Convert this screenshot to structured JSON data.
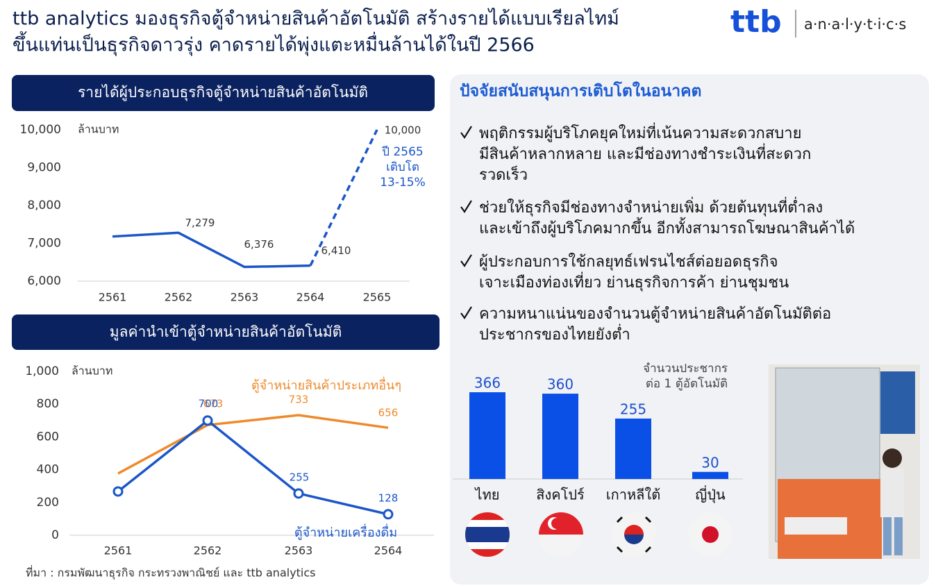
{
  "header": {
    "title_lines": [
      "ttb analytics มองธุรกิจตู้จำหน่ายสินค้าอัตโนมัติ สร้างรายได้แบบเรียลไทม์",
      "ขึ้นแท่นเป็นธุรกิจดาวรุ่ง  คาดรายได้พุ่งแตะหมื่นล้านได้ในปี 2566"
    ],
    "logo": {
      "brand": "ttb",
      "name": "a·n·a·l·y·t·i·c·s"
    }
  },
  "chart_data": [
    {
      "type": "line",
      "title": "รายได้ผู้ประกอบธุรกิจตู้จำหน่ายสินค้าอัตโนมัติ",
      "unit_label": "ล้านบาท",
      "categories": [
        "2561",
        "2562",
        "2563",
        "2564",
        "2565"
      ],
      "values": [
        7180,
        7279,
        6376,
        6410,
        10000
      ],
      "value_labels": [
        null,
        "7,279",
        "6,376",
        "6,410",
        "10,000"
      ],
      "color": "#1a56c8",
      "dashed_from": "2564",
      "annotation": [
        "ปี 2565",
        "เติบโต",
        "13-15%"
      ],
      "ylim": [
        6000,
        10000
      ],
      "yticks": [
        {
          "value": 6000,
          "label": "6,000"
        },
        {
          "value": 7000,
          "label": "7,000"
        },
        {
          "value": 8000,
          "label": "8,000"
        },
        {
          "value": 9000,
          "label": "9,000"
        },
        {
          "value": 10000,
          "label": "10,000"
        }
      ]
    },
    {
      "type": "line",
      "title": "มูลค่านำเข้าตู้จำหน่ายสินค้าอัตโนมัติ",
      "unit_label": "ล้านบาท",
      "categories": [
        "2561",
        "2562",
        "2563",
        "2564"
      ],
      "series": [
        {
          "name": "ตู้จำหน่ายสินค้าประเภทอื่นๆ",
          "color": "#ee8a2c",
          "values": [
            377,
            673,
            733,
            656
          ],
          "value_labels": [
            null,
            "673",
            "733",
            "656"
          ],
          "markers": false
        },
        {
          "name": "ตู้จำหน่ายเครื่องดื่ม",
          "color": "#1a56c8",
          "values": [
            267,
            700,
            255,
            128
          ],
          "value_labels": [
            null,
            "700",
            "255",
            "128"
          ],
          "markers": true
        }
      ],
      "ylim": [
        0,
        1000
      ],
      "yticks": [
        0,
        200,
        400,
        600,
        800,
        {
          "value": 1000,
          "label": "1,000"
        }
      ]
    },
    {
      "type": "bar",
      "title": [
        "จำนวนประชากร",
        "ต่อ 1 ตู้อัตโนมัติ"
      ],
      "categories": [
        "ไทย",
        "สิงคโปร์",
        "เกาหลีใต้",
        "ญี่ปุ่น"
      ],
      "values": [
        366,
        360,
        255,
        30
      ],
      "color": "#0a50e6"
    }
  ],
  "factors": {
    "title": "ปัจจัยสนับสนุนการเติบโตในอนาคต",
    "items": [
      [
        "พฤติกรรมผู้บริโภคยุคใหม่ที่เน้นความสะดวกสบาย",
        "มีสินค้าหลากหลาย และมีช่องทางชำระเงินที่สะดวก",
        "รวดเร็ว"
      ],
      [
        "ช่วยให้ธุรกิจมีช่องทางจำหน่ายเพิ่ม ด้วยต้นทุนที่ต่ำลง",
        "และเข้าถึงผู้บริโภคมากขึ้น อีกทั้งสามารถโฆษณาสินค้าได้"
      ],
      [
        "ผู้ประกอบการใช้กลยุทธ์เฟรนไชส์ต่อยอดธุรกิจ",
        "เจาะเมืองท่องเที่ยว ย่านธุรกิจการค้า ย่านชุมชน"
      ],
      [
        "ความหนาแน่นของจำนวนตู้จำหน่ายสินค้าอัตโนมัติต่อ",
        "ประชากรของไทยยังต่ำ"
      ]
    ]
  },
  "source": "ที่มา : กรมพัฒนาธุรกิจ  กระทรวงพาณิชย์  และ ttb analytics"
}
